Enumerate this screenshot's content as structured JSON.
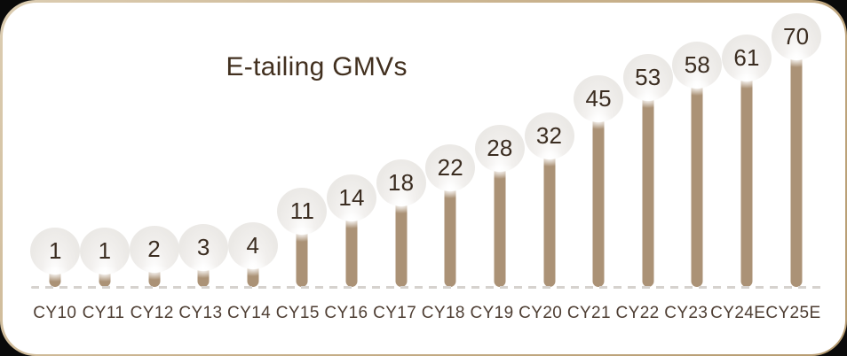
{
  "chart_data": {
    "type": "bar",
    "style": "lollipop",
    "title": "E-tailing GMVs",
    "categories": [
      "CY10",
      "CY11",
      "CY12",
      "CY13",
      "CY14",
      "CY15",
      "CY16",
      "CY17",
      "CY18",
      "CY19",
      "CY20",
      "CY21",
      "CY22",
      "CY23",
      "CY24E",
      "CY25E"
    ],
    "values": [
      1,
      1,
      2,
      3,
      4,
      11,
      14,
      18,
      22,
      28,
      32,
      45,
      53,
      58,
      61,
      70
    ],
    "xlabel": "",
    "ylabel": "",
    "ylim": [
      0,
      70
    ],
    "grid": false,
    "legend": false,
    "baseline_style": "dashed"
  },
  "colors": {
    "page_background": "#0a0a0a",
    "card_background": "#ffffff",
    "card_border": "#c9b28d",
    "stem": "#ab9276",
    "bubble_fill": "#ebe9e6",
    "value_text": "#3b2d21",
    "category_text": "#4e3e33",
    "title_text": "#42301f",
    "baseline_dash": "#d6d2ce"
  }
}
